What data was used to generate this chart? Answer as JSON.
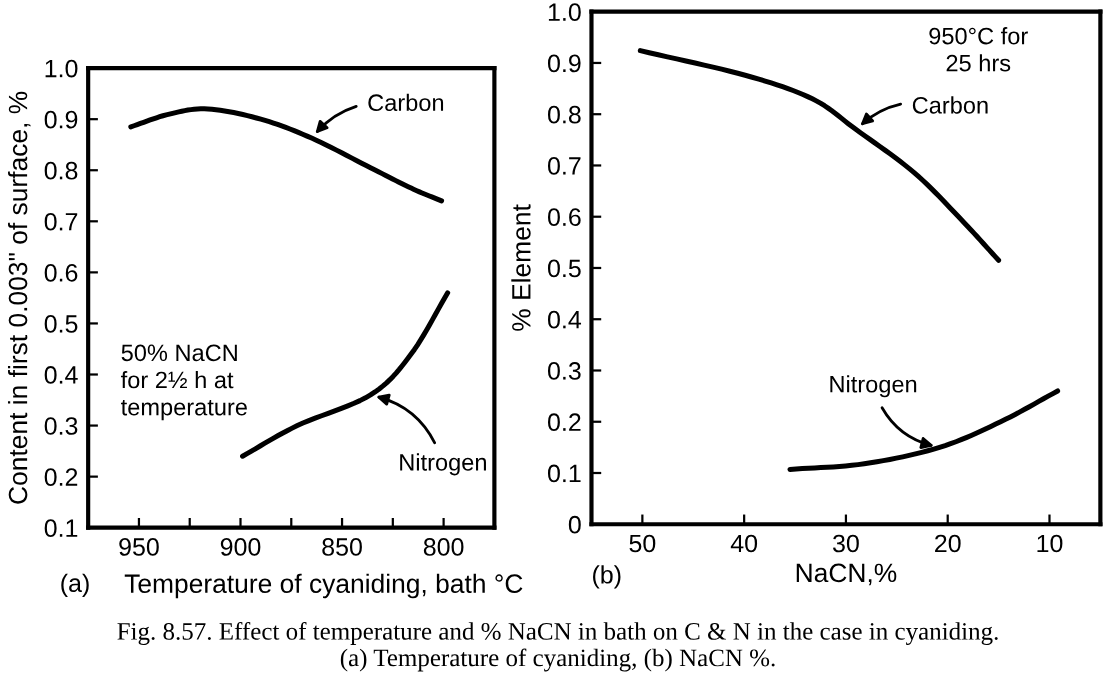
{
  "chart_data": [
    {
      "type": "line",
      "xlabel": "Temperature of cyaniding, bath °C",
      "ylabel": "Content in first 0.003\" of surface, %",
      "xlim": [
        975,
        775
      ],
      "xticks": [
        950,
        {
          "value": 925,
          "label": null
        },
        900,
        {
          "value": 875,
          "label": null
        },
        850,
        {
          "value": 825,
          "label": null
        },
        800
      ],
      "ylim": [
        0.1,
        1.0
      ],
      "yticks": [
        0.1,
        0.2,
        0.3,
        0.4,
        0.5,
        0.6,
        0.7,
        0.8,
        0.9,
        {
          "value": 1.0,
          "label": "1.0"
        }
      ],
      "series": [
        {
          "name": "Carbon",
          "color": "#000000",
          "x": [
            954,
            935,
            916,
            890,
            865,
            836,
            816,
            801
          ],
          "values": [
            0.885,
            0.91,
            0.92,
            0.9,
            0.863,
            0.805,
            0.765,
            0.74
          ]
        },
        {
          "name": "Nitrogen",
          "color": "#000000",
          "x": [
            899,
            872,
            836,
            816,
            798
          ],
          "values": [
            0.24,
            0.3,
            0.36,
            0.44,
            0.56
          ]
        }
      ],
      "annotations": [
        "50% NaCN\nfor 2½ h at\ntemperature",
        "(a)",
        "Fig. 8.57. Effect of temperature and % NaCN in bath on C & N in the case in cyaniding.\n(a) Temperature of cyaniding, (b) NaCN %."
      ],
      "marker": "none",
      "line_style": "solid",
      "grid": false
    },
    {
      "type": "line",
      "xlabel": "NaCN,%",
      "ylabel": "% Element",
      "xlim": [
        55,
        5
      ],
      "xticks": [
        50,
        40,
        30,
        20,
        10
      ],
      "ylim": [
        0,
        1.0
      ],
      "yticks": [
        0,
        0.1,
        0.2,
        0.3,
        0.4,
        0.5,
        0.6,
        0.7,
        0.8,
        0.9,
        {
          "value": 1.0,
          "label": "1.0"
        }
      ],
      "series": [
        {
          "name": "Carbon",
          "color": "#000000",
          "x": [
            50.2,
            39.9,
            33.3,
            29,
            23.3,
            18.7,
            15
          ],
          "values": [
            0.924,
            0.876,
            0.83,
            0.77,
            0.686,
            0.595,
            0.515
          ]
        },
        {
          "name": "Nitrogen",
          "color": "#000000",
          "x": [
            35.5,
            28.2,
            20.8,
            14.8,
            9.2
          ],
          "values": [
            0.107,
            0.118,
            0.15,
            0.2,
            0.26
          ]
        }
      ],
      "annotations": [
        "950°C for\n25 hrs",
        "(b)"
      ],
      "marker": "none",
      "line_style": "solid",
      "grid": false
    }
  ]
}
